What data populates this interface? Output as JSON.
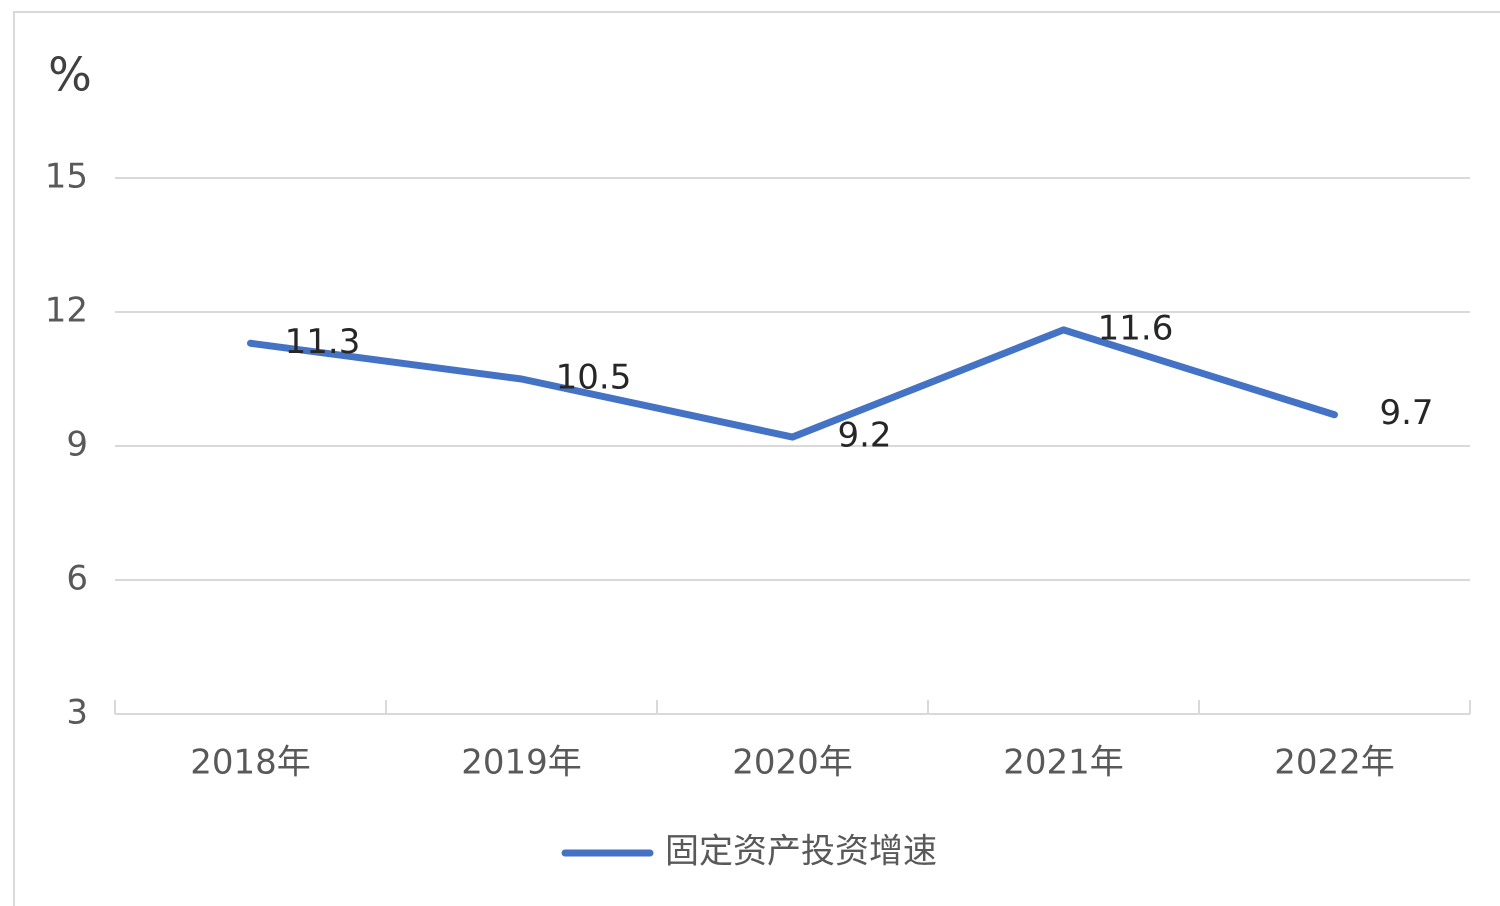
{
  "chart_data": {
    "type": "line",
    "y_label": "%",
    "categories": [
      "2018年",
      "2019年",
      "2020年",
      "2021年",
      "2022年"
    ],
    "series": [
      {
        "name": "固定资产投资增速",
        "color": "#4472c4",
        "values": [
          11.3,
          10.5,
          9.2,
          11.6,
          9.7
        ]
      }
    ],
    "ylim": [
      3,
      15
    ],
    "yticks": [
      3,
      6,
      9,
      12,
      15
    ],
    "grid": true,
    "legend": "bottom"
  }
}
